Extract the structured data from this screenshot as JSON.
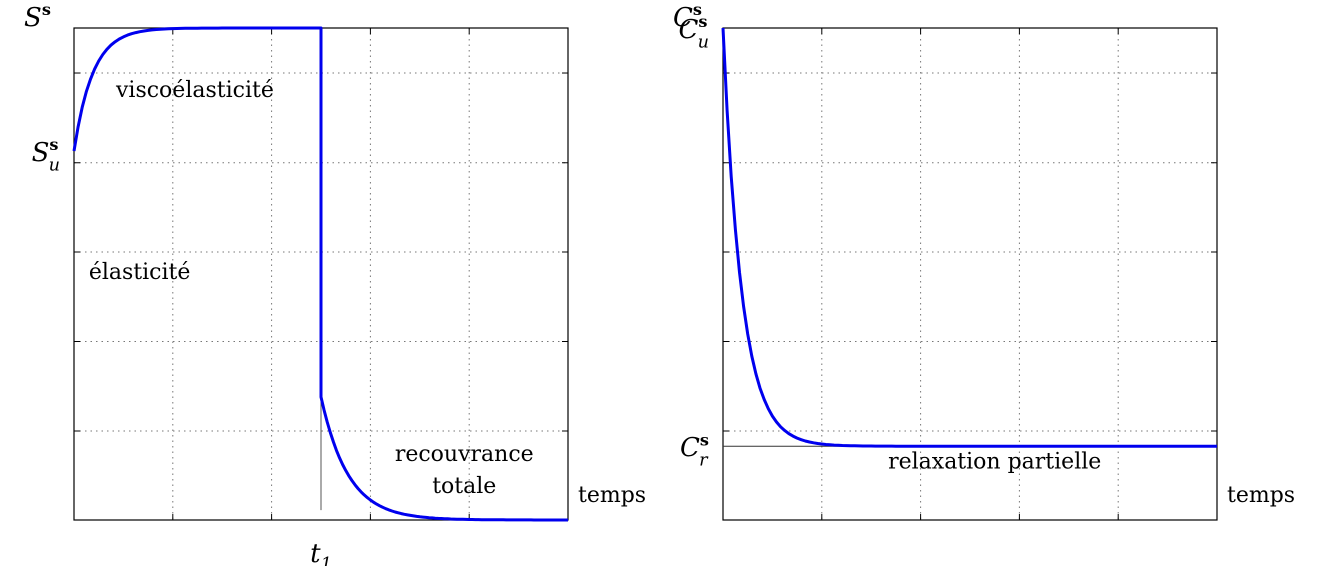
{
  "chart_data": [
    {
      "type": "line",
      "title": "",
      "ylabel": {
        "symbol": "S",
        "sup": "s"
      },
      "xlabel": "temps",
      "xlim": [
        0,
        10
      ],
      "ylim": [
        0,
        10
      ],
      "grid": true,
      "y_tick_labels": [
        {
          "y": 7.5,
          "symbol": "S",
          "sup": "s",
          "sub": "u"
        }
      ],
      "x_tick_labels": [
        {
          "x": 5,
          "symbol": "t",
          "sub": "1"
        }
      ],
      "annotations": [
        {
          "text": "viscoélasticité",
          "x": 0.85,
          "y": 8.6
        },
        {
          "text": "élasticité",
          "x": 0.3,
          "y": 4.9
        },
        {
          "text": "recouvrance",
          "x": 7.9,
          "y": 1.2
        },
        {
          "text": "totale",
          "x": 7.9,
          "y": 0.55
        }
      ],
      "series": [
        {
          "color": "#0000ee",
          "points": [
            [
              0,
              7.5
            ],
            [
              0.25,
              8.6
            ],
            [
              0.5,
              9.25
            ],
            [
              1,
              9.8
            ],
            [
              2,
              9.98
            ],
            [
              5,
              10
            ],
            [
              5,
              2.5
            ],
            [
              5.4,
              1.3
            ],
            [
              6,
              0.45
            ],
            [
              7,
              0.08
            ],
            [
              8,
              0.01
            ],
            [
              10,
              0
            ]
          ]
        }
      ]
    },
    {
      "type": "line",
      "title": "",
      "ylabel": {
        "symbol": "C",
        "sup": "s"
      },
      "xlabel": "temps",
      "xlim": [
        0,
        10
      ],
      "ylim": [
        0,
        10
      ],
      "grid": true,
      "y_tick_labels": [
        {
          "y": 10,
          "symbol": "C",
          "sup": "s",
          "sub": "u"
        },
        {
          "y": 1.5,
          "symbol": "C",
          "sup": "s",
          "sub": "r"
        }
      ],
      "reference_line": {
        "y": 1.5
      },
      "annotations": [
        {
          "text": "relaxation partielle",
          "x": 5.5,
          "y": 1.05
        }
      ],
      "series": [
        {
          "color": "#0000ee",
          "points": [
            [
              0,
              10
            ],
            [
              0.2,
              7.2
            ],
            [
              0.4,
              5.0
            ],
            [
              0.6,
              3.6
            ],
            [
              0.8,
              2.7
            ],
            [
              1,
              2.2
            ],
            [
              1.3,
              1.8
            ],
            [
              1.7,
              1.6
            ],
            [
              2.2,
              1.52
            ],
            [
              3,
              1.5
            ],
            [
              10,
              1.5
            ]
          ]
        }
      ]
    }
  ]
}
